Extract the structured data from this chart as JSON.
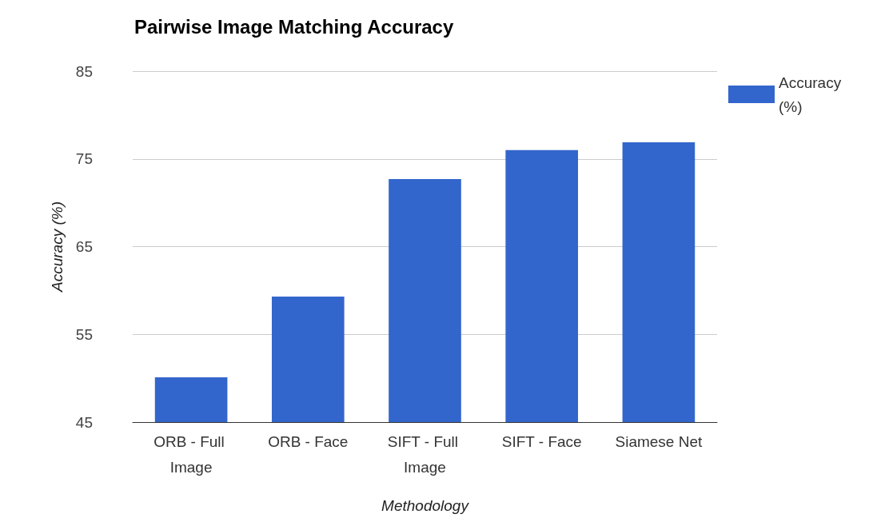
{
  "chart_data": {
    "type": "bar",
    "title": "Pairwise Image Matching Accuracy",
    "xlabel": "Methodology",
    "ylabel": "Accuracy (%)",
    "categories": [
      "ORB - Full Image",
      "ORB - Face",
      "SIFT - Full Image",
      "SIFT - Face",
      "Siamese Net"
    ],
    "series": [
      {
        "name": "Accuracy (%)",
        "color": "#3366cc",
        "values": [
          50.1,
          59.3,
          72.7,
          76.0,
          76.9
        ]
      }
    ],
    "ylim": [
      45,
      85
    ],
    "yticks": [
      45,
      55,
      65,
      75,
      85
    ],
    "grid": "y",
    "legend": "right"
  }
}
